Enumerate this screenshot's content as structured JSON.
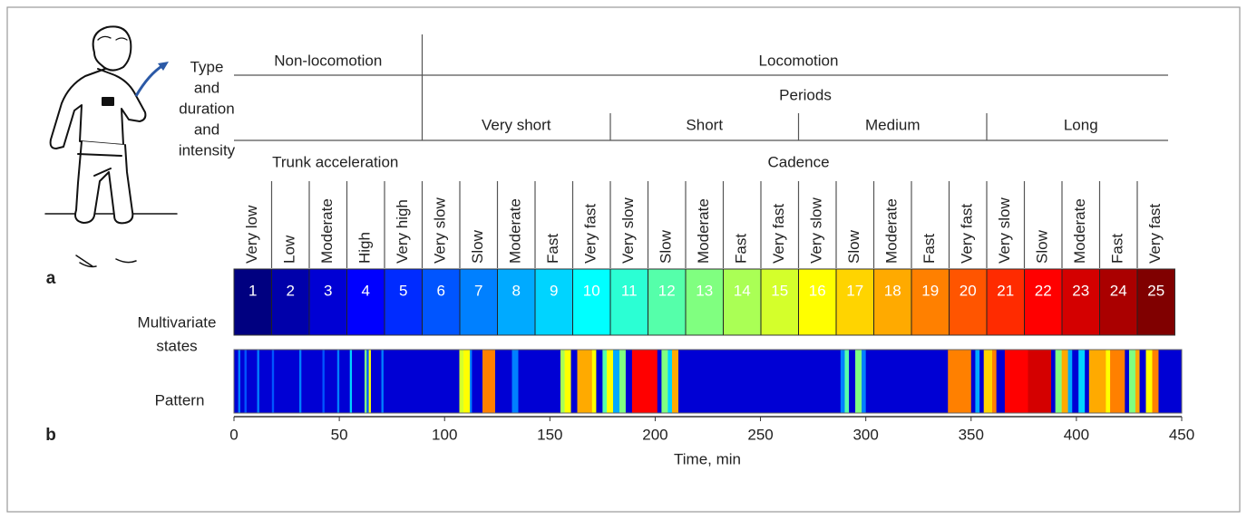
{
  "figure": {
    "panel_a_label": "a",
    "panel_b_label": "b",
    "side_label": [
      "Type",
      "and",
      "duration",
      "and",
      "intensity"
    ],
    "groups": [
      "Non-locomotion",
      "Locomotion"
    ],
    "periods_label": "Periods",
    "periods": [
      "Very short",
      "Short",
      "Medium",
      "Long"
    ],
    "measures": [
      "Trunk acceleration",
      "Cadence"
    ],
    "states_label": [
      "Multivariate",
      "states"
    ],
    "states": [
      {
        "number": 1,
        "label": "Very low",
        "color": "#000080"
      },
      {
        "number": 2,
        "label": "Low",
        "color": "#0000aa"
      },
      {
        "number": 3,
        "label": "Moderate",
        "color": "#0000d4"
      },
      {
        "number": 4,
        "label": "High",
        "color": "#0000ff"
      },
      {
        "number": 5,
        "label": "Very high",
        "color": "#002bff"
      },
      {
        "number": 6,
        "label": "Very slow",
        "color": "#0055ff"
      },
      {
        "number": 7,
        "label": "Slow",
        "color": "#0080ff"
      },
      {
        "number": 8,
        "label": "Moderate",
        "color": "#00aaff"
      },
      {
        "number": 9,
        "label": "Fast",
        "color": "#00d4ff"
      },
      {
        "number": 10,
        "label": "Very fast",
        "color": "#00ffff"
      },
      {
        "number": 11,
        "label": "Very slow",
        "color": "#2bffd4"
      },
      {
        "number": 12,
        "label": "Slow",
        "color": "#55ffaa"
      },
      {
        "number": 13,
        "label": "Moderate",
        "color": "#80ff80"
      },
      {
        "number": 14,
        "label": "Fast",
        "color": "#aaff55"
      },
      {
        "number": 15,
        "label": "Very fast",
        "color": "#d4ff2b"
      },
      {
        "number": 16,
        "label": "Very slow",
        "color": "#ffff00"
      },
      {
        "number": 17,
        "label": "Slow",
        "color": "#ffd400"
      },
      {
        "number": 18,
        "label": "Moderate",
        "color": "#ffaa00"
      },
      {
        "number": 19,
        "label": "Fast",
        "color": "#ff8000"
      },
      {
        "number": 20,
        "label": "Very fast",
        "color": "#ff5500"
      },
      {
        "number": 21,
        "label": "Very slow",
        "color": "#ff2b00"
      },
      {
        "number": 22,
        "label": "Slow",
        "color": "#ff0000"
      },
      {
        "number": 23,
        "label": "Moderate",
        "color": "#d40000"
      },
      {
        "number": 24,
        "label": "Fast",
        "color": "#aa0000"
      },
      {
        "number": 25,
        "label": "Very fast",
        "color": "#800000"
      }
    ],
    "pattern": {
      "label": "Pattern",
      "xlabel": "Time, min",
      "xlim": [
        0,
        450
      ],
      "xticks": [
        0,
        50,
        100,
        150,
        200,
        250,
        300,
        350,
        400,
        450
      ],
      "segments": [
        {
          "start": 0,
          "end": 2,
          "state": 3
        },
        {
          "start": 2,
          "end": 3,
          "state": 7
        },
        {
          "start": 3,
          "end": 5,
          "state": 3
        },
        {
          "start": 5,
          "end": 6,
          "state": 6
        },
        {
          "start": 6,
          "end": 11,
          "state": 3
        },
        {
          "start": 11,
          "end": 12,
          "state": 7
        },
        {
          "start": 12,
          "end": 18,
          "state": 3
        },
        {
          "start": 18,
          "end": 19,
          "state": 6
        },
        {
          "start": 19,
          "end": 31,
          "state": 3
        },
        {
          "start": 31,
          "end": 32,
          "state": 7
        },
        {
          "start": 32,
          "end": 42,
          "state": 3
        },
        {
          "start": 42,
          "end": 43,
          "state": 6
        },
        {
          "start": 43,
          "end": 49,
          "state": 3
        },
        {
          "start": 49,
          "end": 50,
          "state": 7
        },
        {
          "start": 50,
          "end": 55,
          "state": 3
        },
        {
          "start": 55,
          "end": 56,
          "state": 9
        },
        {
          "start": 56,
          "end": 62,
          "state": 3
        },
        {
          "start": 62,
          "end": 63,
          "state": 13
        },
        {
          "start": 63,
          "end": 64,
          "state": 6
        },
        {
          "start": 64,
          "end": 65,
          "state": 16
        },
        {
          "start": 65,
          "end": 70,
          "state": 3
        },
        {
          "start": 70,
          "end": 71,
          "state": 7
        },
        {
          "start": 71,
          "end": 107,
          "state": 3
        },
        {
          "start": 107,
          "end": 109,
          "state": 15
        },
        {
          "start": 109,
          "end": 112,
          "state": 16
        },
        {
          "start": 112,
          "end": 113,
          "state": 7
        },
        {
          "start": 113,
          "end": 118,
          "state": 3
        },
        {
          "start": 118,
          "end": 124,
          "state": 19
        },
        {
          "start": 124,
          "end": 132,
          "state": 3
        },
        {
          "start": 132,
          "end": 135,
          "state": 7
        },
        {
          "start": 135,
          "end": 155,
          "state": 3
        },
        {
          "start": 155,
          "end": 157,
          "state": 14
        },
        {
          "start": 157,
          "end": 160,
          "state": 16
        },
        {
          "start": 160,
          "end": 163,
          "state": 3
        },
        {
          "start": 163,
          "end": 170,
          "state": 18
        },
        {
          "start": 170,
          "end": 172,
          "state": 16
        },
        {
          "start": 172,
          "end": 175,
          "state": 3
        },
        {
          "start": 175,
          "end": 177,
          "state": 12
        },
        {
          "start": 177,
          "end": 180,
          "state": 16
        },
        {
          "start": 180,
          "end": 183,
          "state": 8
        },
        {
          "start": 183,
          "end": 186,
          "state": 13
        },
        {
          "start": 186,
          "end": 189,
          "state": 3
        },
        {
          "start": 189,
          "end": 201,
          "state": 22
        },
        {
          "start": 201,
          "end": 203,
          "state": 3
        },
        {
          "start": 203,
          "end": 206,
          "state": 13
        },
        {
          "start": 206,
          "end": 208,
          "state": 9
        },
        {
          "start": 208,
          "end": 211,
          "state": 18
        },
        {
          "start": 211,
          "end": 288,
          "state": 3
        },
        {
          "start": 288,
          "end": 290,
          "state": 7
        },
        {
          "start": 290,
          "end": 292,
          "state": 12
        },
        {
          "start": 292,
          "end": 295,
          "state": 3
        },
        {
          "start": 295,
          "end": 298,
          "state": 13
        },
        {
          "start": 298,
          "end": 300,
          "state": 7
        },
        {
          "start": 300,
          "end": 339,
          "state": 3
        },
        {
          "start": 339,
          "end": 350,
          "state": 19
        },
        {
          "start": 350,
          "end": 352,
          "state": 3
        },
        {
          "start": 352,
          "end": 354,
          "state": 8
        },
        {
          "start": 354,
          "end": 356,
          "state": 3
        },
        {
          "start": 356,
          "end": 360,
          "state": 17
        },
        {
          "start": 360,
          "end": 362,
          "state": 19
        },
        {
          "start": 362,
          "end": 366,
          "state": 3
        },
        {
          "start": 366,
          "end": 377,
          "state": 22
        },
        {
          "start": 377,
          "end": 388,
          "state": 23
        },
        {
          "start": 388,
          "end": 390,
          "state": 3
        },
        {
          "start": 390,
          "end": 393,
          "state": 13
        },
        {
          "start": 393,
          "end": 396,
          "state": 18
        },
        {
          "start": 396,
          "end": 398,
          "state": 8
        },
        {
          "start": 398,
          "end": 401,
          "state": 3
        },
        {
          "start": 401,
          "end": 404,
          "state": 9
        },
        {
          "start": 404,
          "end": 406,
          "state": 3
        },
        {
          "start": 406,
          "end": 414,
          "state": 18
        },
        {
          "start": 414,
          "end": 416,
          "state": 16
        },
        {
          "start": 416,
          "end": 423,
          "state": 19
        },
        {
          "start": 423,
          "end": 425,
          "state": 3
        },
        {
          "start": 425,
          "end": 428,
          "state": 13
        },
        {
          "start": 428,
          "end": 430,
          "state": 18
        },
        {
          "start": 430,
          "end": 433,
          "state": 3
        },
        {
          "start": 433,
          "end": 436,
          "state": 16
        },
        {
          "start": 436,
          "end": 439,
          "state": 19
        },
        {
          "start": 439,
          "end": 450,
          "state": 3
        }
      ]
    }
  }
}
